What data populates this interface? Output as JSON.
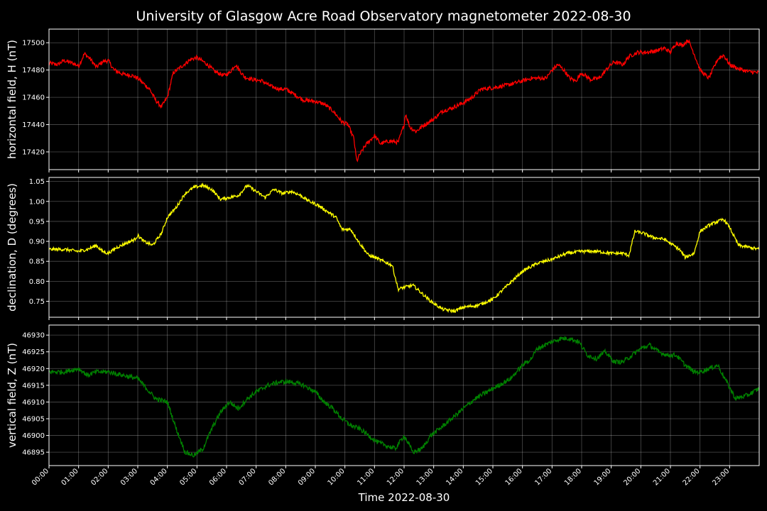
{
  "chart_data": {
    "type": "line",
    "title": "University of Glasgow Acre Road Observatory magnetometer 2022-08-30",
    "xlabel": "Time 2022-08-30",
    "x_ticks": [
      "00:00",
      "01:00",
      "02:00",
      "03:00",
      "04:00",
      "05:00",
      "06:00",
      "07:00",
      "08:00",
      "09:00",
      "10:00",
      "11:00",
      "12:00",
      "13:00",
      "14:00",
      "15:00",
      "16:00",
      "17:00",
      "18:00",
      "19:00",
      "20:00",
      "21:00",
      "22:00",
      "23:00"
    ],
    "x_range_hours": [
      0,
      24
    ],
    "grid": true,
    "panels": [
      {
        "ylabel": "horizontal field, H (nT)",
        "color": "#ff0000",
        "ylim": [
          17407,
          17510
        ],
        "y_ticks": [
          17420,
          17440,
          17460,
          17480,
          17500
        ],
        "y_tick_labels": [
          "17420",
          "17440",
          "17460",
          "17480",
          "17500"
        ],
        "noise": 1.5,
        "x": [
          0,
          0.3,
          0.5,
          0.8,
          1.0,
          1.2,
          1.4,
          1.6,
          1.8,
          2.0,
          2.2,
          2.5,
          2.8,
          3.0,
          3.2,
          3.4,
          3.6,
          3.8,
          4.0,
          4.2,
          4.5,
          4.8,
          5.0,
          5.3,
          5.6,
          5.9,
          6.1,
          6.3,
          6.6,
          6.9,
          7.2,
          7.5,
          7.8,
          8.0,
          8.3,
          8.6,
          9.0,
          9.3,
          9.6,
          9.9,
          10.1,
          10.3,
          10.4,
          10.5,
          10.7,
          11.0,
          11.2,
          11.5,
          11.8,
          12.0,
          12.05,
          12.2,
          12.4,
          12.7,
          13.0,
          13.3,
          13.6,
          14.0,
          14.3,
          14.6,
          15.0,
          15.5,
          16.0,
          16.3,
          16.8,
          17.0,
          17.2,
          17.4,
          17.6,
          17.8,
          18.0,
          18.3,
          18.6,
          18.9,
          19.1,
          19.4,
          19.6,
          19.9,
          20.2,
          20.5,
          20.8,
          21.0,
          21.2,
          21.4,
          21.6,
          21.8,
          22.0,
          22.3,
          22.6,
          22.8,
          23.0,
          23.3,
          23.6,
          24.0
        ],
        "values": [
          17485,
          17484,
          17487,
          17485,
          17483,
          17492,
          17488,
          17482,
          17486,
          17487,
          17480,
          17477,
          17476,
          17474,
          17470,
          17466,
          17458,
          17453,
          17460,
          17478,
          17483,
          17488,
          17489,
          17485,
          17479,
          17476,
          17478,
          17484,
          17475,
          17473,
          17472,
          17468,
          17466,
          17466,
          17462,
          17458,
          17457,
          17455,
          17450,
          17442,
          17440,
          17430,
          17413,
          17418,
          17425,
          17432,
          17426,
          17428,
          17427,
          17440,
          17448,
          17438,
          17435,
          17440,
          17444,
          17450,
          17452,
          17456,
          17460,
          17466,
          17467,
          17469,
          17472,
          17474,
          17474,
          17480,
          17484,
          17480,
          17474,
          17472,
          17478,
          17473,
          17474,
          17482,
          17486,
          17484,
          17490,
          17493,
          17493,
          17494,
          17496,
          17493,
          17500,
          17498,
          17502,
          17492,
          17480,
          17474,
          17488,
          17491,
          17484,
          17481,
          17479,
          17478
        ]
      },
      {
        "ylabel": "declination, D (degrees)",
        "color": "#ffff00",
        "ylim": [
          0.71,
          1.06
        ],
        "y_ticks": [
          0.75,
          0.8,
          0.85,
          0.9,
          0.95,
          1.0,
          1.05
        ],
        "y_tick_labels": [
          "0.75",
          "0.80",
          "0.85",
          "0.90",
          "0.95",
          "1.00",
          "1.05"
        ],
        "noise": 0.004,
        "x": [
          0,
          0.5,
          1.0,
          1.3,
          1.6,
          1.8,
          2.0,
          2.3,
          2.6,
          2.9,
          3.0,
          3.2,
          3.5,
          3.8,
          4.0,
          4.3,
          4.6,
          4.9,
          5.2,
          5.5,
          5.8,
          6.1,
          6.4,
          6.7,
          7.0,
          7.3,
          7.6,
          7.9,
          8.2,
          8.5,
          8.8,
          9.1,
          9.4,
          9.7,
          9.9,
          10.2,
          10.5,
          10.8,
          11.0,
          11.3,
          11.6,
          11.8,
          12.0,
          12.3,
          12.6,
          12.9,
          13.3,
          13.7,
          14.0,
          14.5,
          15.0,
          15.5,
          16.0,
          16.5,
          17.0,
          17.5,
          18.0,
          18.5,
          19.0,
          19.4,
          19.6,
          19.8,
          20.1,
          20.4,
          20.8,
          21.0,
          21.3,
          21.5,
          21.8,
          22.0,
          22.3,
          22.6,
          22.8,
          23.0,
          23.3,
          24.0
        ],
        "values": [
          0.88,
          0.88,
          0.875,
          0.88,
          0.89,
          0.875,
          0.87,
          0.885,
          0.895,
          0.905,
          0.915,
          0.9,
          0.89,
          0.92,
          0.96,
          0.985,
          1.02,
          1.035,
          1.04,
          1.03,
          1.005,
          1.01,
          1.015,
          1.04,
          1.025,
          1.01,
          1.03,
          1.02,
          1.025,
          1.015,
          1.0,
          0.99,
          0.975,
          0.96,
          0.93,
          0.93,
          0.895,
          0.865,
          0.86,
          0.85,
          0.84,
          0.78,
          0.785,
          0.79,
          0.77,
          0.75,
          0.73,
          0.725,
          0.735,
          0.74,
          0.755,
          0.79,
          0.825,
          0.845,
          0.855,
          0.87,
          0.875,
          0.875,
          0.87,
          0.87,
          0.865,
          0.925,
          0.92,
          0.91,
          0.905,
          0.895,
          0.88,
          0.86,
          0.87,
          0.925,
          0.94,
          0.95,
          0.955,
          0.935,
          0.89,
          0.88
        ]
      },
      {
        "ylabel": "vertical field, Z (nT)",
        "color": "#008000",
        "ylim": [
          46891,
          46933
        ],
        "y_ticks": [
          46895,
          46900,
          46905,
          46910,
          46915,
          46920,
          46925,
          46930
        ],
        "y_tick_labels": [
          "46895",
          "46900",
          "46905",
          "46910",
          "46915",
          "46920",
          "46925",
          "46930"
        ],
        "noise": 0.7,
        "x": [
          0,
          0.5,
          1.0,
          1.3,
          1.6,
          2.0,
          2.5,
          3.0,
          3.3,
          3.6,
          4.0,
          4.3,
          4.6,
          4.9,
          5.2,
          5.5,
          5.8,
          6.1,
          6.4,
          6.7,
          7.0,
          7.4,
          7.8,
          8.2,
          8.6,
          9.0,
          9.3,
          9.6,
          9.9,
          10.2,
          10.5,
          10.8,
          11.1,
          11.4,
          11.7,
          12.0,
          12.3,
          12.6,
          12.9,
          13.2,
          13.6,
          14.0,
          14.4,
          14.8,
          15.2,
          15.6,
          16.0,
          16.3,
          16.5,
          17.0,
          17.3,
          17.6,
          17.9,
          18.2,
          18.5,
          18.8,
          19.1,
          19.4,
          19.7,
          20.0,
          20.3,
          20.6,
          20.9,
          21.2,
          21.5,
          21.8,
          22.0,
          22.3,
          22.6,
          22.9,
          23.2,
          23.6,
          24.0
        ],
        "values": [
          46919,
          46919,
          46920,
          46918,
          46919,
          46919,
          46918,
          46917,
          46914,
          46911,
          46910,
          46902,
          46895,
          46894,
          46896,
          46902,
          46907,
          46910,
          46908,
          46911,
          46913,
          46915,
          46916,
          46916,
          46915,
          46913,
          46910,
          46908,
          46905,
          46903,
          46902,
          46900,
          46898,
          46897,
          46896,
          46900,
          46895,
          46896,
          46900,
          46902,
          46905,
          46908,
          46911,
          46913,
          46915,
          46917,
          46921,
          46923,
          46926,
          46928,
          46929,
          46929,
          46928,
          46924,
          46923,
          46925,
          46922,
          46922,
          46924,
          46926,
          46927,
          46925,
          46924,
          46924,
          46921,
          46919,
          46919,
          46920,
          46921,
          46916,
          46911,
          46912,
          46914
        ]
      }
    ]
  }
}
